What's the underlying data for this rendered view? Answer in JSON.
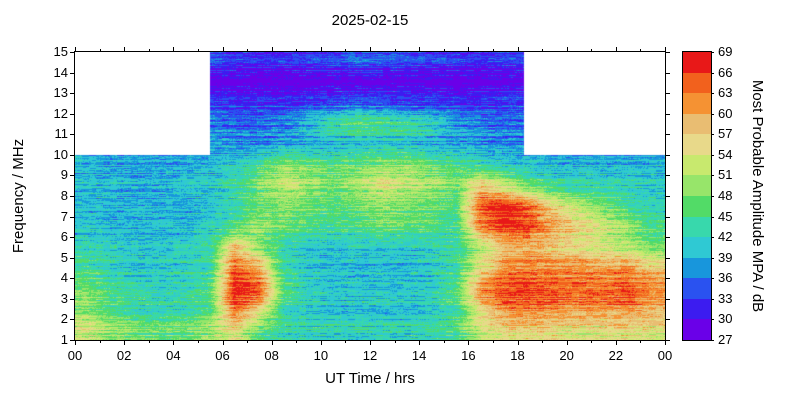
{
  "chart_data": {
    "type": "heatmap",
    "title": "2025-02-15",
    "xlabel": "UT Time / hrs",
    "ylabel": "Frequency / MHz",
    "x_range_hours": [
      0,
      24
    ],
    "x_tick_step_hours": 2,
    "x_minor_tick_step_hours": 1,
    "x_tick_labels": [
      "00",
      "02",
      "04",
      "06",
      "08",
      "10",
      "12",
      "14",
      "16",
      "18",
      "20",
      "22",
      "00"
    ],
    "y_range_mhz": [
      1,
      15
    ],
    "y_tick_labels": [
      "1",
      "2",
      "3",
      "4",
      "5",
      "6",
      "7",
      "8",
      "9",
      "10",
      "11",
      "12",
      "13",
      "14",
      "15"
    ],
    "frame_color": "#000000",
    "no_data_color": "#ffffff",
    "extended_band": {
      "comment_visible_structure": "data above this frequency only present between the start/end hours; white elsewhere",
      "freq_min_mhz": 10,
      "time_start_hr": 5.5,
      "time_end_hr": 18.25
    },
    "colorbar": {
      "label": "Most Probable Amplitude MPA / dB",
      "tick_values": [
        27,
        30,
        33,
        36,
        39,
        42,
        45,
        48,
        51,
        54,
        57,
        60,
        63,
        66,
        69
      ],
      "band_colors_low_to_high": [
        "#6a00e8",
        "#3c1cf0",
        "#2a52f0",
        "#1896dc",
        "#2fc9d3",
        "#38d8ac",
        "#52db67",
        "#97e56a",
        "#c8e96e",
        "#e8d98a",
        "#e9bd72",
        "#f59233",
        "#f2611d",
        "#e81818"
      ]
    },
    "grid": {
      "time_bin_hours": 1,
      "freq_bin_mhz": 1,
      "row_order": "low_freq_to_high",
      "row_freq_band_low_edge_mhz": [
        1,
        2,
        3,
        4,
        5,
        6,
        7,
        8,
        9,
        10,
        11,
        12,
        13,
        14
      ],
      "values_db": [
        [
          53,
          49,
          47,
          47,
          47,
          50,
          55,
          46,
          43,
          42,
          42,
          42,
          42,
          42,
          43,
          45,
          52,
          55,
          56,
          55,
          54,
          54,
          55,
          54
        ],
        [
          50,
          46,
          44,
          43,
          44,
          46,
          65,
          58,
          44,
          42,
          41,
          41,
          41,
          41,
          42,
          45,
          57,
          63,
          64,
          63,
          62,
          62,
          63,
          60
        ],
        [
          48,
          45,
          43,
          42,
          43,
          46,
          68,
          66,
          46,
          42,
          41,
          41,
          41,
          41,
          42,
          46,
          62,
          66,
          66,
          65,
          64,
          64,
          65,
          62
        ],
        [
          45,
          42,
          41,
          41,
          42,
          44,
          64,
          60,
          44,
          41,
          40,
          40,
          40,
          40,
          41,
          44,
          55,
          62,
          63,
          62,
          62,
          61,
          62,
          58
        ],
        [
          42,
          41,
          40,
          40,
          41,
          43,
          58,
          48,
          42,
          40,
          40,
          40,
          40,
          40,
          41,
          43,
          50,
          57,
          58,
          56,
          54,
          52,
          51,
          47
        ],
        [
          41,
          40,
          40,
          40,
          40,
          42,
          46,
          50,
          48,
          46,
          45,
          46,
          48,
          47,
          46,
          45,
          62,
          68,
          66,
          60,
          57,
          54,
          50,
          45
        ],
        [
          41,
          40,
          40,
          40,
          40,
          41,
          44,
          48,
          50,
          48,
          47,
          48,
          50,
          49,
          48,
          46,
          66,
          69,
          65,
          57,
          53,
          49,
          45,
          43
        ],
        [
          40,
          40,
          39,
          39,
          40,
          41,
          43,
          48,
          52,
          50,
          48,
          50,
          54,
          52,
          50,
          48,
          57,
          52,
          47,
          44,
          43,
          42,
          42,
          41
        ],
        [
          40,
          39,
          39,
          39,
          39,
          40,
          42,
          46,
          50,
          49,
          47,
          48,
          50,
          50,
          48,
          46,
          44,
          42,
          41,
          40,
          40,
          40,
          40,
          40
        ],
        [
          null,
          null,
          null,
          null,
          null,
          38,
          37,
          37,
          38,
          38,
          39,
          40,
          40,
          40,
          39,
          38,
          37,
          37,
          37,
          null,
          null,
          null,
          null,
          null
        ],
        [
          null,
          null,
          null,
          null,
          null,
          36,
          35,
          35,
          36,
          40,
          44,
          46,
          45,
          44,
          42,
          38,
          36,
          35,
          35,
          null,
          null,
          null,
          null,
          null
        ],
        [
          null,
          null,
          null,
          null,
          null,
          34,
          33,
          33,
          33,
          34,
          34,
          35,
          35,
          34,
          34,
          33,
          33,
          34,
          34,
          null,
          null,
          null,
          null,
          null
        ],
        [
          null,
          null,
          null,
          null,
          null,
          29,
          28,
          28,
          28,
          28,
          29,
          29,
          29,
          29,
          28,
          28,
          28,
          29,
          29,
          null,
          null,
          null,
          null,
          null
        ],
        [
          null,
          null,
          null,
          null,
          null,
          33,
          32,
          31,
          31,
          32,
          33,
          34,
          33,
          33,
          32,
          32,
          31,
          32,
          32,
          null,
          null,
          null,
          null,
          null
        ]
      ]
    }
  }
}
